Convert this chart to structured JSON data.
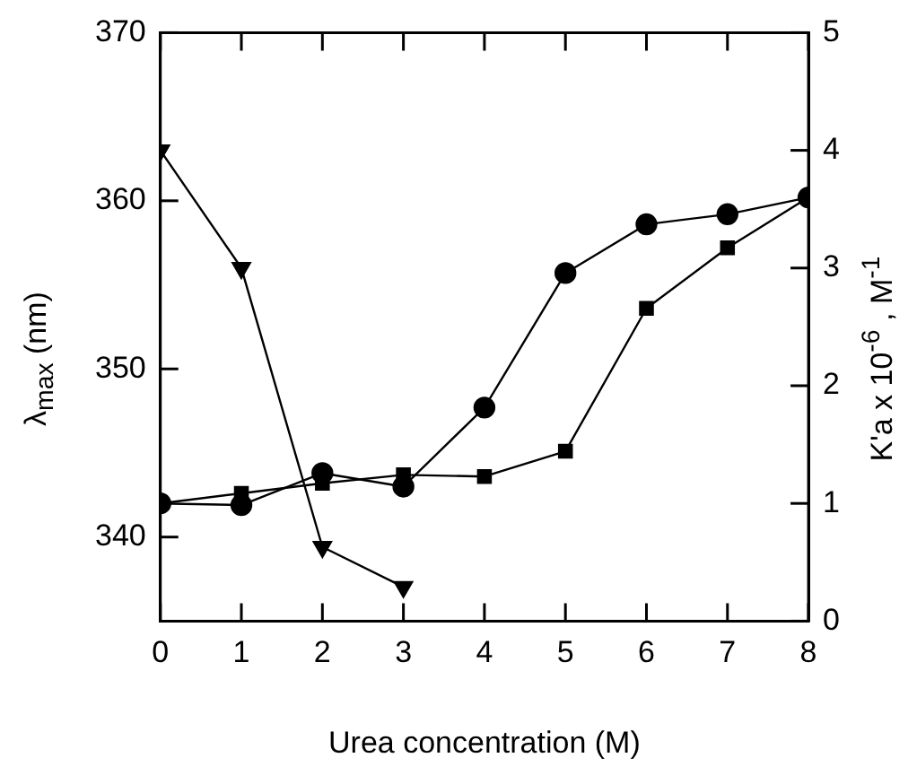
{
  "chart_data": {
    "type": "line",
    "xlabel": "Urea concentration (M)",
    "ylabel": "λ$_{max}$ (nm)",
    "y2label": "K'a x 10$^{-6}$ , M$^{-1}$",
    "x": [
      0,
      1,
      2,
      3,
      4,
      5,
      6,
      7,
      8
    ],
    "xlim": [
      0,
      8
    ],
    "xticks": [
      0,
      1,
      2,
      3,
      4,
      5,
      6,
      7,
      8
    ],
    "ylim": [
      335,
      370
    ],
    "yticks": [
      340,
      350,
      360,
      370
    ],
    "y2lim": [
      0,
      5
    ],
    "y2ticks": [
      0,
      1,
      2,
      3,
      4,
      5
    ],
    "grid": false,
    "legend": false,
    "series": [
      {
        "color": "#000000",
        "marker": "circle",
        "values": [
          342.0,
          341.9,
          343.8,
          343.0,
          347.7,
          355.7,
          358.6,
          359.2,
          360.2
        ]
      },
      {
        "color": "#000000",
        "marker": "square",
        "values": [
          342.0,
          342.6,
          343.2,
          343.7,
          343.6,
          345.1,
          353.6,
          357.2,
          360.2
        ]
      },
      {
        "color": "#000000",
        "marker": "triangle-down",
        "axis": "y2",
        "x": [
          0,
          1,
          2,
          3
        ],
        "values": [
          4.0,
          3.0,
          0.63,
          0.29
        ]
      }
    ]
  }
}
